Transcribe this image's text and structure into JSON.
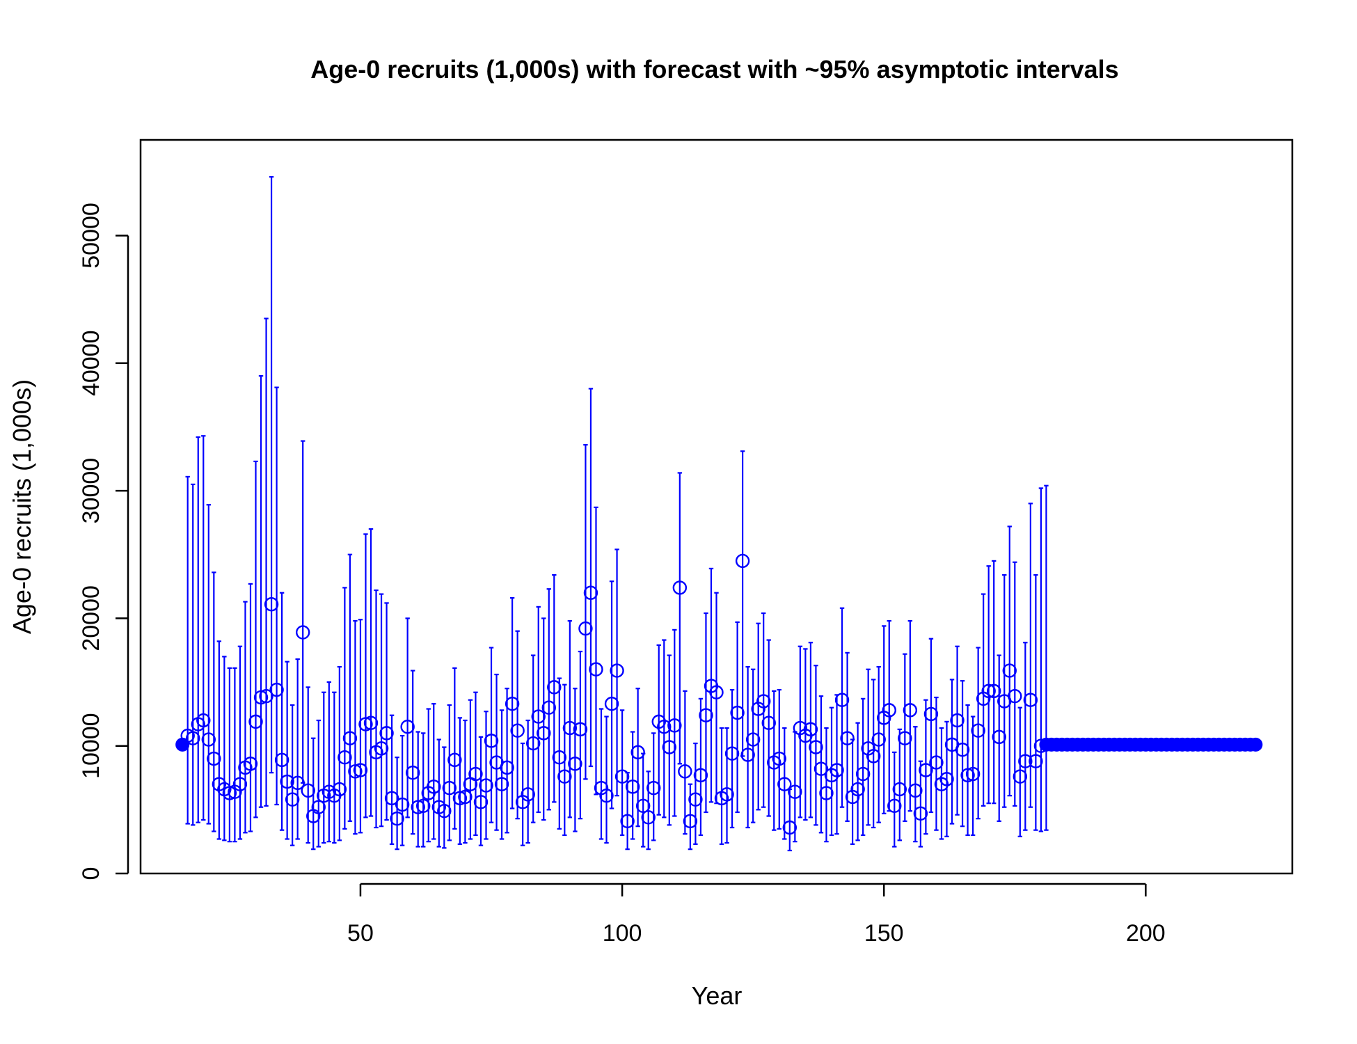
{
  "chart_data": {
    "type": "scatter",
    "title": "Age-0 recruits (1,000s) with forecast with ~95% asymptotic intervals",
    "xlabel": "Year",
    "ylabel": "Age-0 recruits (1,000s)",
    "xlim": [
      8,
      228
    ],
    "ylim": [
      0,
      57500
    ],
    "x_ticks": [
      50,
      100,
      150,
      200
    ],
    "y_ticks": [
      0,
      10000,
      20000,
      30000,
      40000,
      50000
    ],
    "grid": false,
    "legend": "none",
    "color": "#0000ff",
    "virgin": {
      "x": 16,
      "y": 10100
    },
    "estimates": {
      "x": [
        17,
        18,
        19,
        20,
        21,
        22,
        23,
        24,
        25,
        26,
        27,
        28,
        29,
        30,
        31,
        32,
        33,
        34,
        35,
        36,
        37,
        38,
        39,
        40,
        41,
        42,
        43,
        44,
        45,
        46,
        47,
        48,
        49,
        50,
        51,
        52,
        53,
        54,
        55,
        56,
        57,
        58,
        59,
        60,
        61,
        62,
        63,
        64,
        65,
        66,
        67,
        68,
        69,
        70,
        71,
        72,
        73,
        74,
        75,
        76,
        77,
        78,
        79,
        80,
        81,
        82,
        83,
        84,
        85,
        86,
        87,
        88,
        89,
        90,
        91,
        92,
        93,
        94,
        95,
        96,
        97,
        98,
        99,
        100,
        101,
        102,
        103,
        104,
        105,
        106,
        107,
        108,
        109,
        110,
        111,
        112,
        113,
        114,
        115,
        116,
        117,
        118,
        119,
        120,
        121,
        122,
        123,
        124,
        125,
        126,
        127,
        128,
        129,
        130,
        131,
        132,
        133,
        134,
        135,
        136,
        137,
        138,
        139,
        140,
        141,
        142,
        143,
        144,
        145,
        146,
        147,
        148,
        149,
        150,
        151,
        152,
        153,
        154,
        155,
        156,
        157,
        158,
        159,
        160,
        161,
        162,
        163,
        164,
        165,
        166,
        167,
        168,
        169,
        170,
        171,
        172,
        173,
        174,
        175,
        176,
        177,
        178,
        179,
        180
      ],
      "y": [
        10800,
        10600,
        11700,
        12000,
        10500,
        9000,
        7000,
        6600,
        6300,
        6400,
        7000,
        8300,
        8600,
        11900,
        13800,
        13900,
        21100,
        14400,
        8900,
        7200,
        5800,
        7100,
        18900,
        6500,
        4500,
        5200,
        6100,
        6400,
        6100,
        6600,
        9100,
        10600,
        8000,
        8100,
        11700,
        11800,
        9500,
        9800,
        11000,
        5900,
        4300,
        5400,
        11500,
        7900,
        5200,
        5300,
        6300,
        6800,
        5200,
        4900,
        6700,
        8900,
        5900,
        6000,
        7000,
        7800,
        5600,
        6900,
        10400,
        8700,
        7000,
        8300,
        13300,
        11200,
        5600,
        6200,
        10200,
        12300,
        11000,
        13000,
        14600,
        9100,
        7600,
        11400,
        8600,
        11300,
        19200,
        22000,
        16000,
        6700,
        6100,
        13300,
        15900,
        7600,
        4100,
        6800,
        9500,
        5300,
        4400,
        6700,
        11900,
        11500,
        9900,
        11600,
        22400,
        8000,
        4100,
        5800,
        7700,
        12400,
        14700,
        14200,
        5900,
        6200,
        9400,
        12600,
        24500,
        9300,
        10500,
        12900,
        13500,
        11800,
        8700,
        9000,
        7000,
        3600,
        6400,
        11400,
        10800,
        11300,
        9900,
        8200,
        6300,
        7700,
        8100,
        13600,
        10600,
        6000,
        6600,
        7800,
        9800,
        9200,
        10500,
        12200,
        12800,
        5300,
        6600,
        10600,
        12800,
        6500,
        4700,
        8100,
        12500,
        8700,
        7000,
        7400,
        10100,
        12000,
        9700,
        7700,
        7800,
        11200,
        13700,
        14300,
        14300,
        10700,
        13500,
        15900,
        13900,
        7600,
        8800,
        13600,
        8800,
        10000
      ],
      "lower": [
        3900,
        3800,
        4000,
        4200,
        3900,
        3300,
        2700,
        2600,
        2500,
        2500,
        2700,
        3200,
        3300,
        4400,
        5200,
        5300,
        7900,
        5400,
        3400,
        2700,
        2200,
        2700,
        7100,
        2400,
        1900,
        2100,
        2400,
        2500,
        2400,
        2600,
        3500,
        4100,
        3100,
        3200,
        4400,
        4500,
        3600,
        3700,
        4200,
        2300,
        1900,
        2200,
        4400,
        3100,
        2100,
        2100,
        2500,
        2700,
        2100,
        2000,
        2600,
        3500,
        2300,
        2400,
        2700,
        3000,
        2200,
        2700,
        4000,
        3400,
        2700,
        3200,
        5100,
        4300,
        2200,
        2400,
        4000,
        4800,
        4200,
        5000,
        5600,
        3500,
        3000,
        4400,
        3300,
        4300,
        7400,
        8400,
        6200,
        2700,
        2400,
        5100,
        6100,
        3000,
        1900,
        2700,
        3700,
        2100,
        1900,
        2600,
        4600,
        4400,
        3800,
        4500,
        8600,
        3100,
        1900,
        2300,
        3000,
        4800,
        5600,
        5500,
        2300,
        2400,
        3600,
        4800,
        9200,
        3600,
        4000,
        5000,
        5200,
        4500,
        3400,
        3500,
        2700,
        1800,
        2500,
        4400,
        4200,
        4400,
        3800,
        3200,
        2500,
        3000,
        3100,
        5200,
        4100,
        2300,
        2600,
        3000,
        3800,
        3600,
        4000,
        4700,
        4900,
        2100,
        2600,
        4100,
        4900,
        2500,
        2100,
        3100,
        4800,
        3400,
        2700,
        2900,
        3900,
        4600,
        3700,
        3000,
        3000,
        4300,
        5300,
        5500,
        5500,
        4100,
        5200,
        6100,
        5300,
        2900,
        3400,
        5200,
        3400,
        3300
      ],
      "upper": [
        31100,
        30500,
        34200,
        34300,
        28900,
        23600,
        18200,
        17000,
        16100,
        16100,
        17800,
        21300,
        22700,
        32300,
        39000,
        43500,
        54600,
        38100,
        22000,
        16600,
        13200,
        16800,
        33900,
        14600,
        10600,
        12000,
        14200,
        15000,
        14200,
        16200,
        22400,
        25000,
        19800,
        19900,
        26600,
        27000,
        22200,
        21900,
        21200,
        12400,
        9100,
        10800,
        20000,
        15900,
        11100,
        11000,
        12900,
        13300,
        10500,
        9900,
        13200,
        16100,
        12200,
        12000,
        13600,
        14200,
        10700,
        12700,
        17700,
        15600,
        12800,
        14500,
        21600,
        19000,
        10200,
        12000,
        17100,
        20900,
        20000,
        22300,
        23400,
        15300,
        14800,
        19800,
        14500,
        17400,
        33600,
        38000,
        28700,
        12900,
        12300,
        22900,
        25400,
        12800,
        7900,
        11100,
        14500,
        9400,
        8000,
        11000,
        17900,
        18300,
        17100,
        19100,
        31400,
        14300,
        7000,
        10200,
        13700,
        20400,
        23900,
        22000,
        11400,
        11400,
        14400,
        19700,
        33100,
        16200,
        16000,
        19600,
        20400,
        18300,
        14300,
        14400,
        11400,
        6600,
        11100,
        17800,
        17600,
        18100,
        16300,
        13900,
        11400,
        13000,
        14000,
        20800,
        17300,
        10500,
        11800,
        13700,
        16000,
        15200,
        16200,
        19400,
        19800,
        9500,
        11300,
        17200,
        19800,
        11500,
        8800,
        13600,
        18400,
        13800,
        11400,
        11900,
        15200,
        17800,
        15100,
        13200,
        12300,
        17700,
        21900,
        24100,
        24500,
        17100,
        23400,
        27200,
        24400,
        13000,
        18100,
        29000,
        23400,
        30200
      ],
      "marker": "open-circle"
    },
    "forecast": {
      "x_start": 181,
      "x_end": 221,
      "value": 10100,
      "upper_first": 30400,
      "lower_first": 3400,
      "marker": "filled-circle"
    }
  }
}
